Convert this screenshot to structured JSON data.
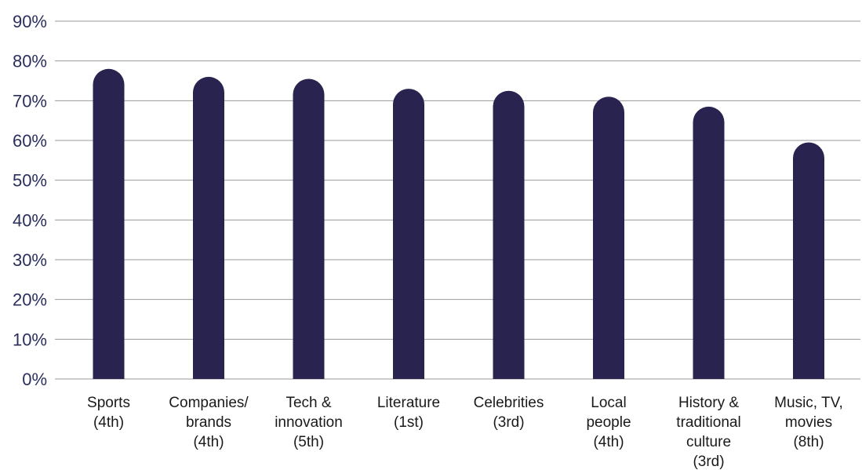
{
  "chart_data": {
    "type": "bar",
    "categories": [
      [
        "Sports",
        "(4th)"
      ],
      [
        "Companies/",
        "brands",
        "(4th)"
      ],
      [
        "Tech &",
        "innovation",
        "(5th)"
      ],
      [
        "Literature",
        "(1st)"
      ],
      [
        "Celebrities",
        "(3rd)"
      ],
      [
        "Local",
        "people",
        "(4th)"
      ],
      [
        "History &",
        "traditional",
        "culture",
        "(3rd)"
      ],
      [
        "Music, TV,",
        "movies",
        "(8th)"
      ]
    ],
    "values": [
      78,
      76,
      75.5,
      73,
      72.5,
      71,
      68.5,
      59.5
    ],
    "ylim": [
      0,
      90
    ],
    "yticks": [
      0,
      10,
      20,
      30,
      40,
      50,
      60,
      70,
      80,
      90
    ],
    "ytick_labels": [
      "0%",
      "10%",
      "20%",
      "30%",
      "40%",
      "50%",
      "60%",
      "70%",
      "80%",
      "90%"
    ],
    "grid": true,
    "bar_color": "#29234f",
    "grid_color": "#9a9a9a",
    "tick_color": "#2b2f5e"
  }
}
